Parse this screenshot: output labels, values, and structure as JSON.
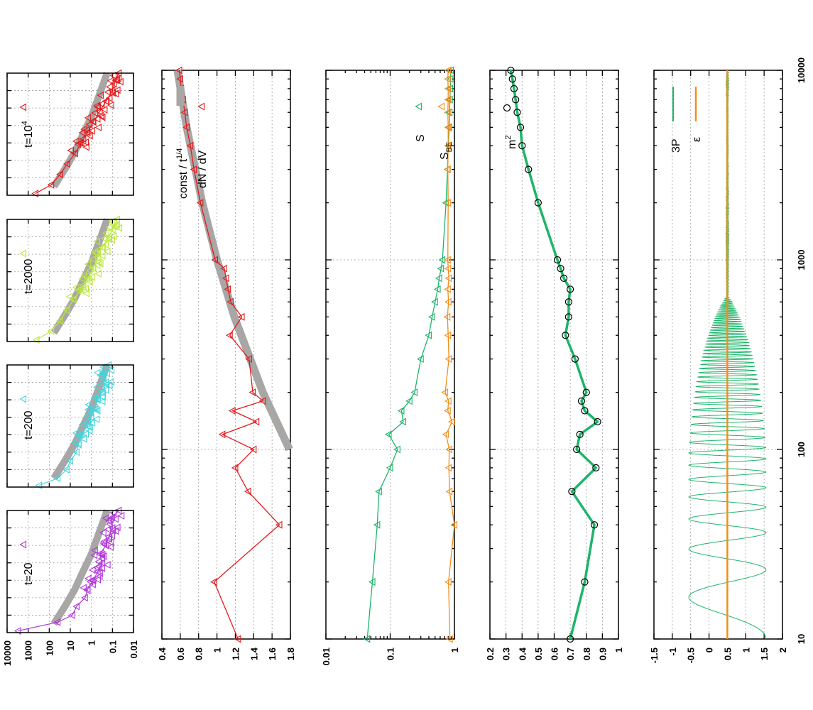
{
  "colors": {
    "red": "#e41a1c",
    "green": "#1db56a",
    "orange": "#f28e1c",
    "gray": "#a9a6a6",
    "purple": "#b139d9",
    "cyan": "#44d4dc",
    "lime": "#bbe840",
    "black": "#000000"
  },
  "chart_data": [
    {
      "id": "snapshot-t20",
      "type": "scatter",
      "label": "t=20",
      "y_scale": "log",
      "ylim": [
        0.01,
        10000
      ],
      "tick_labels": [
        "10000",
        "1000",
        "100",
        "10",
        "1",
        "0.1",
        "0.01"
      ],
      "series": [
        {
          "color": "#b139d9",
          "marker": "triangle",
          "x": [
            0.1,
            0.6,
            1.0,
            1.5,
            2.0,
            2.5,
            3.0,
            3.5,
            4.0,
            4.5,
            5.0,
            5.5,
            6.0,
            6.5,
            7.0
          ],
          "y": [
            3000,
            40,
            8,
            5,
            2,
            1.5,
            0.8,
            0.5,
            0.3,
            0.4,
            0.2,
            0.15,
            0.1,
            0.12,
            0.05
          ]
        },
        {
          "color": "#a9a6a6",
          "x": [
            0.5,
            1.5,
            2.5,
            3.5,
            4.5,
            5.5,
            6.5,
            7.0
          ],
          "y": [
            60,
            18,
            6,
            2.5,
            1,
            0.5,
            0.25,
            0.18
          ]
        }
      ]
    },
    {
      "id": "snapshot-t200",
      "type": "scatter",
      "label": "t=200",
      "y_scale": "log",
      "ylim": [
        0.01,
        10000
      ],
      "series": [
        {
          "color": "#44d4dc",
          "marker": "triangle",
          "x": [
            0.1,
            0.5,
            1.0,
            1.5,
            2.0,
            2.5,
            3.0,
            3.5,
            4.0,
            4.5,
            5.0,
            5.5,
            6.0,
            6.5,
            7.0
          ],
          "y": [
            300,
            40,
            15,
            10,
            5,
            4,
            3,
            1.5,
            1,
            0.8,
            0.5,
            0.3,
            0.2,
            0.3,
            0.15
          ]
        },
        {
          "color": "#a9a6a6",
          "x": [
            0.5,
            1.5,
            2.5,
            3.5,
            4.5,
            5.5,
            6.5,
            7.0
          ],
          "y": [
            60,
            18,
            6,
            2.5,
            1,
            0.5,
            0.25,
            0.18
          ]
        }
      ]
    },
    {
      "id": "snapshot-t2000",
      "type": "scatter",
      "label": "t=2000",
      "y_scale": "log",
      "ylim": [
        0.01,
        10000
      ],
      "series": [
        {
          "color": "#bbe840",
          "marker": "triangle",
          "x": [
            0.1,
            0.6,
            1.2,
            1.8,
            2.4,
            3.0,
            3.6,
            4.2,
            4.8,
            5.4,
            6.0,
            6.6,
            7.0
          ],
          "y": [
            400,
            80,
            30,
            15,
            7,
            3,
            1.5,
            0.8,
            0.5,
            0.3,
            0.15,
            0.08,
            0.06
          ]
        },
        {
          "color": "#a9a6a6",
          "x": [
            0.5,
            1.5,
            2.5,
            3.5,
            4.5,
            5.5,
            6.5,
            7.0
          ],
          "y": [
            60,
            18,
            6,
            2.5,
            1,
            0.5,
            0.25,
            0.18
          ]
        }
      ]
    },
    {
      "id": "snapshot-t10000",
      "type": "scatter",
      "label": "t=10",
      "label_sup": "4",
      "y_scale": "log",
      "ylim": [
        0.01,
        10000
      ],
      "series": [
        {
          "color": "#e41a1c",
          "marker": "triangle",
          "x": [
            0.1,
            0.6,
            1.2,
            1.8,
            2.4,
            3.0,
            3.6,
            4.2,
            4.8,
            5.4,
            6.0,
            6.6,
            7.0
          ],
          "y": [
            450,
            80,
            30,
            14,
            6,
            3,
            1.5,
            0.8,
            0.4,
            0.2,
            0.1,
            0.07,
            0.05
          ]
        },
        {
          "color": "#a9a6a6",
          "x": [
            0.5,
            1.5,
            2.5,
            3.5,
            4.5,
            5.5,
            6.5,
            7.0
          ],
          "y": [
            60,
            18,
            6,
            2.5,
            1,
            0.5,
            0.25,
            0.18
          ]
        }
      ]
    },
    {
      "id": "dNdV",
      "type": "line",
      "x_scale": "log",
      "xlim": [
        10,
        10000
      ],
      "ylim": [
        0.4,
        1.8
      ],
      "tick_labels": [
        "1.8",
        "1.6",
        "1.4",
        "1.2",
        "1",
        "0.8",
        "0.6",
        "0.4"
      ],
      "legend": [
        {
          "text": "const / t",
          "sup": "1/4"
        },
        {
          "text": "dN / dV"
        }
      ],
      "series": [
        {
          "name": "dN / dV",
          "color": "#e41a1c",
          "x": [
            10,
            20,
            40,
            60,
            80,
            100,
            120,
            140,
            160,
            180,
            200,
            300,
            400,
            500,
            600,
            700,
            800,
            900,
            1000,
            2000,
            3000,
            4000,
            5000,
            6000,
            7000,
            8000,
            9000,
            10000
          ],
          "y": [
            1.23,
            0.97,
            1.68,
            1.34,
            1.2,
            1.4,
            1.06,
            1.43,
            1.17,
            1.5,
            1.39,
            1.35,
            1.14,
            1.27,
            1.15,
            1.12,
            1.1,
            1.08,
            0.98,
            0.82,
            0.75,
            0.71,
            0.67,
            0.65,
            0.63,
            0.61,
            0.6,
            0.59
          ]
        },
        {
          "name": "const / t^1/4",
          "color": "#a9a6a6",
          "x": [
            100,
            200,
            500,
            1000,
            2000,
            5000,
            10000
          ],
          "y": [
            1.79,
            1.5,
            1.19,
            1.0,
            0.84,
            0.67,
            0.57
          ]
        }
      ]
    },
    {
      "id": "entropy",
      "type": "line",
      "x_scale": "log",
      "y_scale": "log",
      "xlim": [
        10,
        10000
      ],
      "ylim": [
        0.01,
        1
      ],
      "tick_labels": [
        "1",
        "0.1",
        "0.01"
      ],
      "legend": [
        {
          "text": "S"
        },
        {
          "text": "S",
          "sub": "BE"
        }
      ],
      "series": [
        {
          "name": "S",
          "color": "#1db56a",
          "x": [
            10,
            20,
            40,
            60,
            80,
            100,
            120,
            140,
            160,
            180,
            200,
            300,
            400,
            500,
            600,
            700,
            800,
            900,
            1000,
            2000,
            3000,
            4000,
            5000,
            6000,
            7000,
            8000,
            9000,
            10000
          ],
          "y": [
            0.044,
            0.053,
            0.063,
            0.067,
            0.1,
            0.13,
            0.095,
            0.16,
            0.15,
            0.2,
            0.24,
            0.3,
            0.4,
            0.45,
            0.5,
            0.55,
            0.58,
            0.62,
            0.65,
            0.74,
            0.78,
            0.8,
            0.83,
            0.84,
            0.85,
            0.86,
            0.87,
            0.88
          ]
        },
        {
          "name": "S_BE",
          "color": "#f28e1c",
          "x": [
            10,
            20,
            40,
            60,
            80,
            100,
            120,
            140,
            160,
            180,
            200,
            300,
            400,
            500,
            600,
            700,
            800,
            900,
            1000,
            2000,
            3000,
            4000,
            5000,
            6000,
            7000,
            8000,
            9000,
            10000
          ],
          "y": [
            0.85,
            0.81,
            1.0,
            0.84,
            0.82,
            0.83,
            0.74,
            0.92,
            0.79,
            0.81,
            0.72,
            0.82,
            0.8,
            0.78,
            0.81,
            0.79,
            0.82,
            0.8,
            0.79,
            0.8,
            0.79,
            0.8,
            0.8,
            0.79,
            0.8,
            0.8,
            0.79,
            0.8
          ]
        }
      ]
    },
    {
      "id": "m-squared",
      "type": "line",
      "x_scale": "log",
      "xlim": [
        10,
        10000
      ],
      "ylim": [
        0.2,
        1.0
      ],
      "tick_labels": [
        "1",
        "0.9",
        "0.8",
        "0.7",
        "0.6",
        "0.5",
        "0.4",
        "0.3",
        "0.2"
      ],
      "legend": [
        {
          "text": "m",
          "sup": "2"
        }
      ],
      "series": [
        {
          "name": "m^2",
          "color": "#1db56a",
          "marker_color": "#000000",
          "x": [
            10,
            20,
            40,
            60,
            80,
            100,
            120,
            140,
            160,
            180,
            200,
            300,
            400,
            500,
            600,
            700,
            800,
            900,
            1000,
            2000,
            3000,
            4000,
            5000,
            6000,
            7000,
            8000,
            9000,
            10000
          ],
          "y": [
            0.7,
            0.79,
            0.85,
            0.71,
            0.86,
            0.74,
            0.76,
            0.87,
            0.79,
            0.77,
            0.8,
            0.73,
            0.67,
            0.69,
            0.69,
            0.7,
            0.66,
            0.64,
            0.62,
            0.5,
            0.44,
            0.4,
            0.39,
            0.37,
            0.36,
            0.35,
            0.34,
            0.33
          ]
        }
      ]
    },
    {
      "id": "pressure-energy",
      "type": "line",
      "x_scale": "log",
      "xlim": [
        10,
        10000
      ],
      "ylim": [
        -1.5,
        2
      ],
      "x_tick_labels": [
        "10",
        "100",
        "1000",
        "10000"
      ],
      "tick_labels": [
        "2",
        "1.5",
        "1",
        "0.5",
        "0",
        "-0.5",
        "-1",
        "-1.5"
      ],
      "legend": [
        {
          "text": "3P"
        },
        {
          "text": "ε"
        }
      ],
      "series": [
        {
          "name": "3P",
          "color": "#1db56a",
          "x_range": [
            10,
            10000
          ],
          "y_center": 0.5
        },
        {
          "name": "ε",
          "color": "#f28e1c",
          "x": [
            10,
            10000
          ],
          "y": [
            0.5,
            0.5
          ]
        }
      ]
    }
  ]
}
